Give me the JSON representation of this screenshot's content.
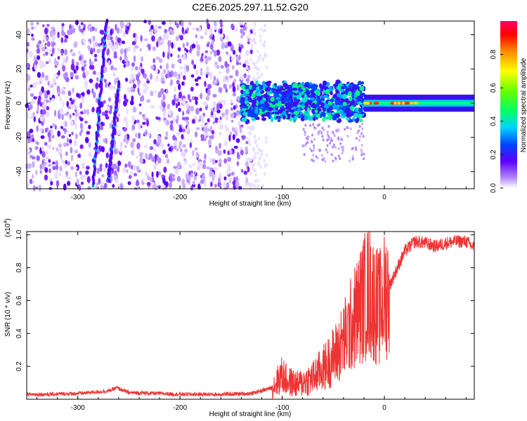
{
  "title": "C2E6.2025.297.11.52.G20",
  "chart_data": [
    {
      "type": "heatmap",
      "xlabel": "Height of straight line (km)",
      "ylabel": "Frequency (Hz)",
      "xlim": [
        -350,
        88
      ],
      "ylim": [
        -50,
        48
      ],
      "xticks": [
        -300,
        -200,
        -100,
        0
      ],
      "yticks": [
        -40,
        -20,
        0,
        20,
        40
      ],
      "colorbar": {
        "label": "Normalized spectral amplitude",
        "range": [
          0,
          1
        ],
        "ticks": [
          "0.0",
          "0.2",
          "0.4",
          "0.6",
          "0.8"
        ],
        "tick_values": [
          0.0,
          0.2,
          0.4,
          0.6,
          0.8
        ]
      },
      "features": {
        "diffuse_noise_x_range": [
          -350,
          -130
        ],
        "cluster_x_range": [
          -140,
          -20
        ],
        "cluster_freq_range": [
          -10,
          12
        ],
        "narrow_band_x_range": [
          -20,
          88
        ],
        "narrow_band_freq": 0,
        "streaks": [
          {
            "x_start": -285,
            "x_end": -272,
            "f_start": -48,
            "f_end": 48
          },
          {
            "x_start": -270,
            "x_end": -260,
            "f_start": -45,
            "f_end": 12
          }
        ]
      }
    },
    {
      "type": "line",
      "xlabel": "Height of straight line (km)",
      "ylabel": "SNR (10 * v/v)",
      "exponent_label": "(x10",
      "exponent": "4",
      "xlim": [
        -350,
        88
      ],
      "ylim": [
        0,
        1.02
      ],
      "xticks": [
        -300,
        -200,
        -100,
        0
      ],
      "yticks": [
        "0.2",
        "0.4",
        "0.6",
        "0.8",
        "1.0"
      ],
      "ytick_values": [
        0.2,
        0.4,
        0.6,
        0.8,
        1.0
      ],
      "series": [
        {
          "name": "SNR",
          "color": "#ee3333",
          "x": [
            -350,
            -330,
            -300,
            -270,
            -262,
            -250,
            -220,
            -200,
            -160,
            -130,
            -110,
            -100,
            -95,
            -85,
            -70,
            -55,
            -45,
            -35,
            -25,
            -20,
            -15,
            -10,
            -5,
            0,
            10,
            20,
            30,
            40,
            50,
            60,
            70,
            80,
            88
          ],
          "y": [
            0.03,
            0.03,
            0.035,
            0.05,
            0.07,
            0.04,
            0.035,
            0.03,
            0.03,
            0.035,
            0.07,
            0.15,
            0.11,
            0.09,
            0.13,
            0.22,
            0.3,
            0.42,
            0.55,
            0.62,
            0.66,
            0.6,
            0.55,
            0.62,
            0.76,
            0.9,
            0.96,
            0.95,
            0.93,
            0.95,
            0.96,
            0.96,
            0.92
          ]
        }
      ]
    }
  ]
}
